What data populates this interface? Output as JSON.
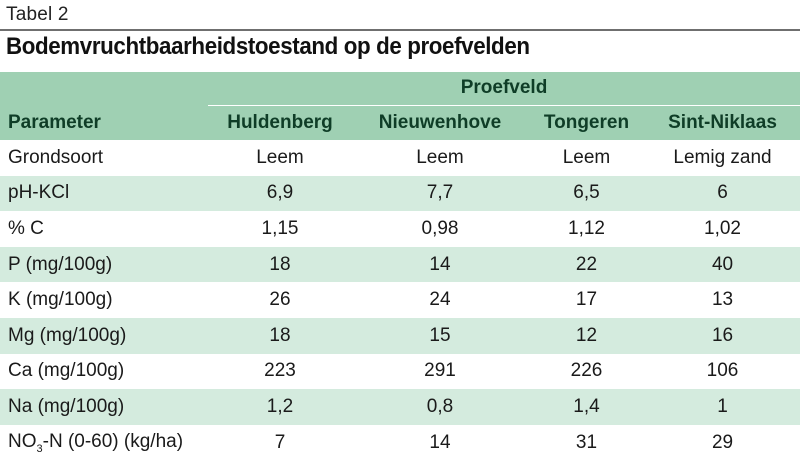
{
  "table_label": "Tabel 2",
  "title": "Bodemvruchtbaarheidstoestand op de proefvelden",
  "header": {
    "group": "Proefveld",
    "parameter": "Parameter",
    "fields": [
      "Huldenberg",
      "Nieuwenhove",
      "Tongeren",
      "Sint-Niklaas"
    ]
  },
  "rows": [
    {
      "name": "Grondsoort",
      "values": [
        "Leem",
        "Leem",
        "Leem",
        "Lemig zand"
      ]
    },
    {
      "name": "pH-KCl",
      "values": [
        "6,9",
        "7,7",
        "6,5",
        "6"
      ]
    },
    {
      "name": "% C",
      "values": [
        "1,15",
        "0,98",
        "1,12",
        "1,02"
      ]
    },
    {
      "name": "P (mg/100g)",
      "values": [
        "18",
        "14",
        "22",
        "40"
      ]
    },
    {
      "name": "K (mg/100g)",
      "values": [
        "26",
        "24",
        "17",
        "13"
      ]
    },
    {
      "name": "Mg (mg/100g)",
      "values": [
        "18",
        "15",
        "12",
        "16"
      ]
    },
    {
      "name": "Ca (mg/100g)",
      "values": [
        "223",
        "291",
        "226",
        "106"
      ]
    },
    {
      "name": "Na (mg/100g)",
      "values": [
        "1,2",
        "0,8",
        "1,4",
        "1"
      ]
    },
    {
      "name_prefix": "NO",
      "name_sub": "3",
      "name_suffix": "-N (0-60) (kg/ha)",
      "values": [
        "7",
        "14",
        "31",
        "29"
      ]
    }
  ]
}
